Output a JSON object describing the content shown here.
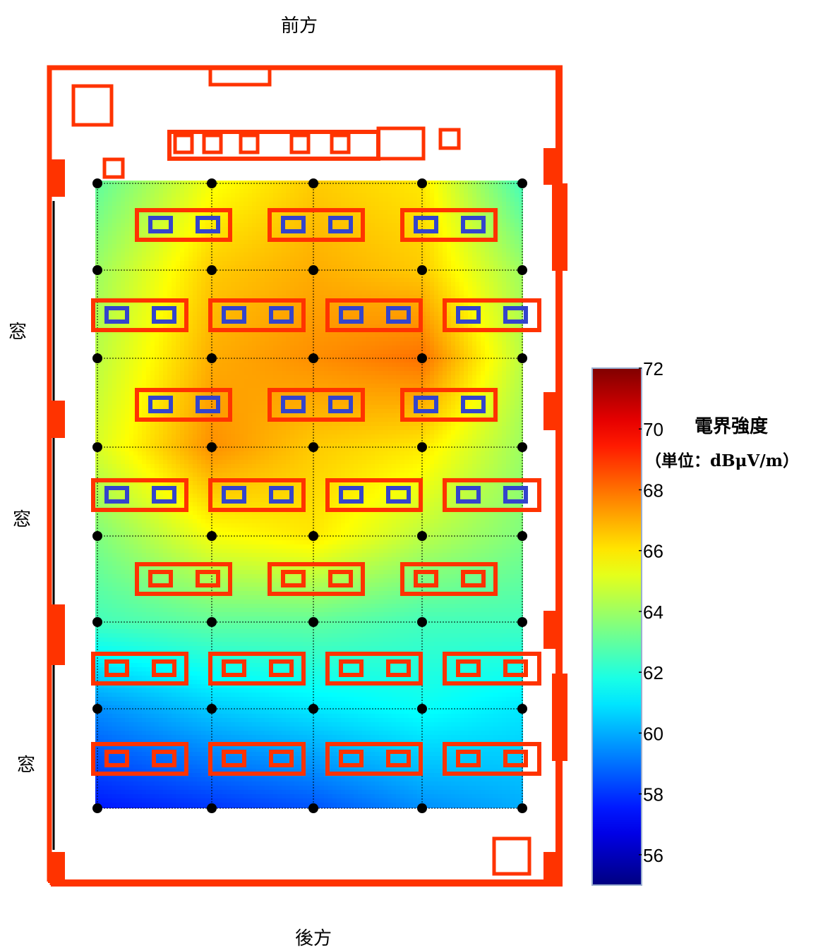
{
  "labels": {
    "front": "前方",
    "back": "後方",
    "window": "窓",
    "legend_title": "電界強度",
    "legend_unit": "（単位：dBμV/m）"
  },
  "chart_data": {
    "type": "heatmap",
    "colormap": "jet",
    "colorbar": {
      "min": 55,
      "max": 72,
      "ticks": [
        56,
        58,
        60,
        62,
        64,
        66,
        68,
        70,
        72
      ],
      "title": "電界強度",
      "unit": "（単位：dBμV/m）"
    },
    "grid_columns": 5,
    "grid_rows": 8,
    "values": [
      [
        63.0,
        65.5,
        66.5,
        66.0,
        62.5
      ],
      [
        64.0,
        66.5,
        67.0,
        66.5,
        64.0
      ],
      [
        64.5,
        67.0,
        67.5,
        68.0,
        64.5
      ],
      [
        65.0,
        67.5,
        66.5,
        66.0,
        64.0
      ],
      [
        63.5,
        65.5,
        66.0,
        64.5,
        63.5
      ],
      [
        62.5,
        63.0,
        63.0,
        62.5,
        62.5
      ],
      [
        59.5,
        60.5,
        61.0,
        61.5,
        61.0
      ],
      [
        57.5,
        58.0,
        58.5,
        59.5,
        60.0
      ]
    ],
    "measurement_points": "grid intersections (5 x 8)",
    "colors": {
      "room_outline": "#ff3300",
      "desk_outline": "#ff3300",
      "desk_blue": "#3344cc",
      "point": "#000000"
    }
  }
}
